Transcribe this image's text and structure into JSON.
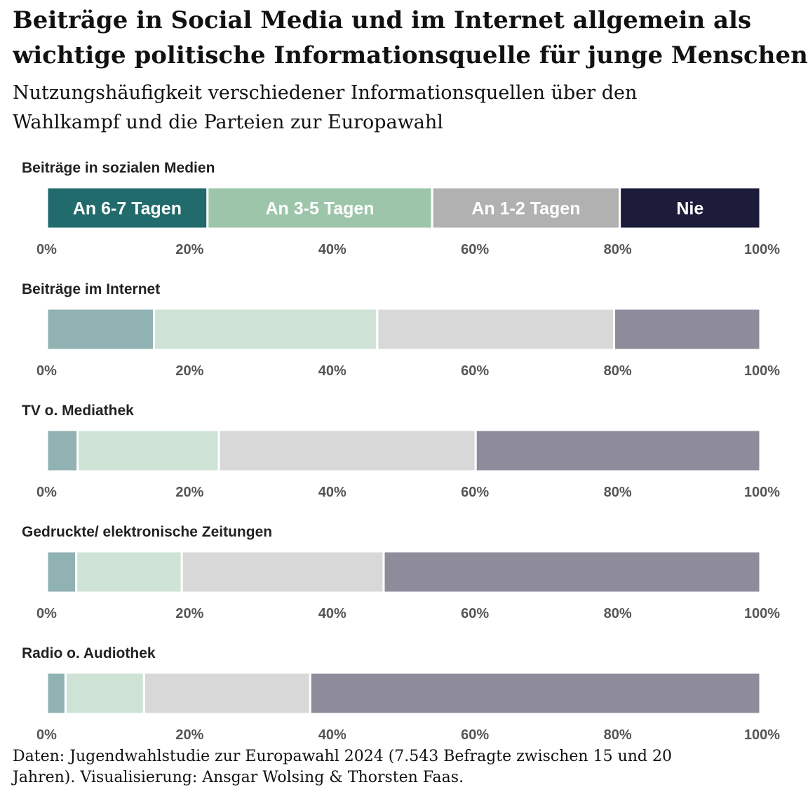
{
  "title": {
    "line1": "Beiträge in Social Media und im Internet allgemein als",
    "line2": "wichtige politische Informationsquelle für junge Menschen"
  },
  "subtitle": {
    "line1": "Nutzungshäufigkeit verschiedener Informationsquellen über den",
    "line2": "Wahlkampf und die Parteien zur Europawahl"
  },
  "caption": {
    "line1": "Daten: Jugendwahlstudie zur Europawahl 2024 (7.543 Befragte zwischen 15 und 20",
    "line2": "Jahren). Visualisierung: Ansgar Wolsing & Thorsten Faas."
  },
  "chart_data": {
    "type": "bar",
    "orientation": "horizontal-stacked-100",
    "xlim": [
      0,
      100
    ],
    "ticks": [
      "0%",
      "20%",
      "40%",
      "60%",
      "80%",
      "100%"
    ],
    "tick_values": [
      0,
      20,
      40,
      60,
      80,
      100
    ],
    "highlight_category": "Beiträge in sozialen Medien",
    "categories": [
      "Beiträge in sozialen Medien",
      "Beiträge im Internet",
      "TV o. Mediathek",
      "Gedruckte/ elektronische Zeitungen",
      "Radio o. Audiothek"
    ],
    "series": [
      {
        "name": "An 6-7 Tagen",
        "color": "#226b6c",
        "color_muted": "#90b2b2",
        "values": [
          22.5,
          15,
          4.3,
          4.1,
          2.6
        ]
      },
      {
        "name": "An 3-5 Tagen",
        "color": "#9dc5aa",
        "color_muted": "#cfe2d6",
        "values": [
          31.5,
          31.3,
          19.8,
          14.8,
          11
        ]
      },
      {
        "name": "An 1-2 Tagen",
        "color": "#b1b1b1",
        "color_muted": "#d8d8d8",
        "values": [
          26.3,
          33.2,
          36,
          28.3,
          23.3
        ]
      },
      {
        "name": "Nie",
        "color": "#1c1b3a",
        "color_muted": "#8e8c9b",
        "values": [
          19.7,
          20.5,
          39.9,
          52.8,
          63.1
        ]
      }
    ]
  }
}
